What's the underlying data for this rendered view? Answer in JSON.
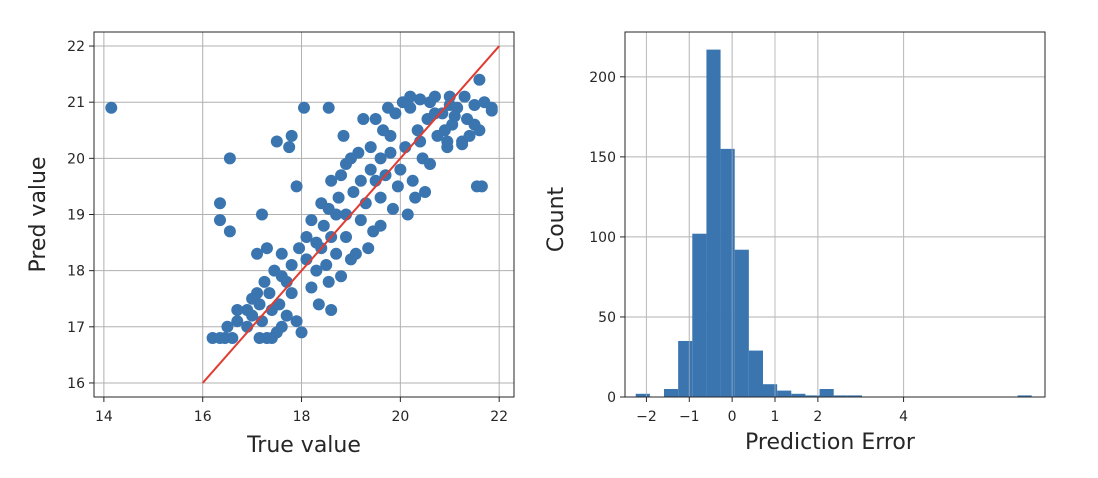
{
  "chart_data": [
    {
      "type": "scatter",
      "title": "",
      "xlabel": "True value",
      "ylabel": "Pred value",
      "xlim": [
        13.8,
        22.3
      ],
      "ylim": [
        15.75,
        22.25
      ],
      "xticks": [
        14,
        16,
        18,
        20,
        22
      ],
      "xtick_labels": [
        "14",
        "16",
        "18",
        "20",
        "22"
      ],
      "yticks": [
        16,
        17,
        18,
        19,
        20,
        21,
        22
      ],
      "ytick_labels": [
        "16",
        "17",
        "18",
        "19",
        "20",
        "21",
        "22"
      ],
      "grid": true,
      "point_color": "#3a75b0",
      "reference_line": {
        "x": [
          16,
          22
        ],
        "y": [
          16,
          22
        ],
        "color": "#e03c31"
      },
      "series": [
        {
          "points": [
            [
              14.15,
              20.9
            ],
            [
              16.2,
              16.8
            ],
            [
              16.35,
              16.8
            ],
            [
              16.45,
              16.8
            ],
            [
              16.6,
              16.8
            ],
            [
              17.15,
              16.8
            ],
            [
              17.3,
              16.8
            ],
            [
              16.5,
              17.0
            ],
            [
              16.7,
              17.1
            ],
            [
              16.9,
              17.0
            ],
            [
              17.0,
              17.2
            ],
            [
              17.2,
              17.1
            ],
            [
              17.4,
              17.3
            ],
            [
              17.5,
              16.9
            ],
            [
              16.7,
              17.3
            ],
            [
              17.0,
              17.5
            ],
            [
              17.1,
              17.6
            ],
            [
              17.25,
              17.8
            ],
            [
              17.35,
              17.6
            ],
            [
              17.55,
              17.4
            ],
            [
              17.7,
              17.2
            ],
            [
              17.8,
              17.6
            ],
            [
              17.9,
              17.1
            ],
            [
              17.6,
              17.9
            ],
            [
              17.45,
              18.0
            ],
            [
              17.1,
              18.3
            ],
            [
              17.3,
              18.4
            ],
            [
              17.6,
              18.3
            ],
            [
              17.8,
              18.1
            ],
            [
              17.95,
              18.4
            ],
            [
              18.1,
              18.2
            ],
            [
              18.2,
              17.7
            ],
            [
              18.35,
              17.4
            ],
            [
              18.55,
              17.8
            ],
            [
              18.6,
              17.3
            ],
            [
              18.1,
              18.6
            ],
            [
              18.3,
              18.5
            ],
            [
              18.45,
              18.8
            ],
            [
              18.5,
              18.1
            ],
            [
              18.7,
              18.3
            ],
            [
              18.8,
              17.9
            ],
            [
              18.9,
              18.6
            ],
            [
              19.0,
              18.2
            ],
            [
              18.2,
              18.9
            ],
            [
              18.55,
              19.1
            ],
            [
              18.75,
              19.3
            ],
            [
              18.9,
              19.0
            ],
            [
              19.05,
              19.4
            ],
            [
              19.2,
              18.9
            ],
            [
              19.3,
              19.2
            ],
            [
              19.45,
              18.7
            ],
            [
              19.5,
              19.6
            ],
            [
              19.6,
              19.3
            ],
            [
              19.7,
              19.7
            ],
            [
              19.85,
              19.1
            ],
            [
              19.95,
              19.5
            ],
            [
              18.6,
              19.6
            ],
            [
              18.9,
              19.9
            ],
            [
              19.15,
              20.1
            ],
            [
              19.4,
              20.2
            ],
            [
              19.6,
              20.0
            ],
            [
              19.8,
              20.4
            ],
            [
              20.0,
              19.8
            ],
            [
              20.1,
              20.2
            ],
            [
              20.25,
              19.6
            ],
            [
              20.35,
              20.5
            ],
            [
              20.45,
              20.0
            ],
            [
              20.55,
              20.7
            ],
            [
              20.6,
              19.9
            ],
            [
              20.75,
              20.4
            ],
            [
              20.85,
              20.8
            ],
            [
              20.95,
              20.2
            ],
            [
              21.05,
              20.6
            ],
            [
              21.15,
              20.9
            ],
            [
              21.25,
              20.3
            ],
            [
              21.35,
              20.7
            ],
            [
              21.5,
              20.95
            ],
            [
              21.6,
              20.5
            ],
            [
              21.7,
              21.0
            ],
            [
              21.85,
              20.9
            ],
            [
              20.2,
              20.9
            ],
            [
              20.4,
              21.05
            ],
            [
              20.7,
              21.1
            ],
            [
              21.0,
              21.1
            ],
            [
              21.3,
              21.1
            ],
            [
              19.9,
              20.8
            ],
            [
              19.75,
              20.9
            ],
            [
              19.5,
              20.7
            ],
            [
              20.05,
              21.0
            ],
            [
              20.3,
              19.3
            ],
            [
              20.5,
              19.4
            ],
            [
              20.15,
              19.0
            ],
            [
              19.35,
              18.4
            ],
            [
              19.6,
              18.8
            ],
            [
              19.1,
              18.3
            ],
            [
              18.8,
              19.7
            ],
            [
              18.4,
              19.2
            ],
            [
              19.2,
              19.6
            ],
            [
              19.65,
              20.5
            ],
            [
              19.25,
              20.7
            ],
            [
              18.55,
              20.9
            ],
            [
              18.85,
              20.4
            ],
            [
              17.8,
              20.4
            ],
            [
              17.5,
              20.3
            ],
            [
              17.75,
              20.2
            ],
            [
              17.9,
              19.5
            ],
            [
              17.2,
              19.0
            ],
            [
              16.35,
              19.2
            ],
            [
              16.35,
              18.9
            ],
            [
              16.55,
              18.7
            ],
            [
              16.55,
              20.0
            ],
            [
              18.05,
              20.9
            ],
            [
              20.2,
              21.1
            ],
            [
              21.85,
              20.85
            ],
            [
              21.6,
              21.4
            ],
            [
              21.55,
              19.5
            ],
            [
              21.65,
              19.5
            ],
            [
              21.25,
              20.25
            ],
            [
              20.95,
              20.3
            ],
            [
              21.5,
              20.6
            ],
            [
              19.0,
              20.0
            ],
            [
              18.6,
              18.6
            ],
            [
              18.3,
              18.0
            ],
            [
              17.6,
              17.0
            ],
            [
              17.4,
              16.8
            ],
            [
              18.0,
              16.9
            ],
            [
              20.7,
              20.8
            ],
            [
              20.9,
              20.5
            ],
            [
              20.4,
              20.3
            ],
            [
              21.1,
              20.75
            ],
            [
              21.4,
              20.4
            ],
            [
              19.8,
              20.1
            ],
            [
              19.4,
              19.8
            ],
            [
              18.7,
              19.0
            ],
            [
              18.4,
              18.4
            ],
            [
              17.7,
              17.8
            ],
            [
              17.15,
              17.4
            ],
            [
              16.9,
              17.3
            ],
            [
              20.6,
              21.0
            ],
            [
              21.0,
              20.95
            ]
          ]
        }
      ]
    },
    {
      "type": "bar",
      "title": "",
      "xlabel": "Prediction Error",
      "ylabel": "Count",
      "xlim": [
        -2.5,
        7.3
      ],
      "ylim": [
        0,
        228
      ],
      "xticks": [
        -2,
        -1,
        0,
        1,
        2,
        4
      ],
      "xtick_labels": [
        "−2",
        "−1",
        "0",
        "1",
        "2",
        "4"
      ],
      "yticks": [
        0,
        50,
        100,
        150,
        200
      ],
      "ytick_labels": [
        "0",
        "50",
        "100",
        "150",
        "200"
      ],
      "grid": true,
      "bar_color": "#3a75b0",
      "bins": [
        {
          "x0": -2.25,
          "x1": -1.92,
          "value": 2
        },
        {
          "x0": -1.92,
          "x1": -1.59,
          "value": 0
        },
        {
          "x0": -1.59,
          "x1": -1.26,
          "value": 5
        },
        {
          "x0": -1.26,
          "x1": -0.93,
          "value": 35
        },
        {
          "x0": -0.93,
          "x1": -0.6,
          "value": 102
        },
        {
          "x0": -0.6,
          "x1": -0.27,
          "value": 217
        },
        {
          "x0": -0.27,
          "x1": 0.06,
          "value": 155
        },
        {
          "x0": 0.06,
          "x1": 0.39,
          "value": 92
        },
        {
          "x0": 0.39,
          "x1": 0.72,
          "value": 29
        },
        {
          "x0": 0.72,
          "x1": 1.05,
          "value": 8
        },
        {
          "x0": 1.05,
          "x1": 1.38,
          "value": 4
        },
        {
          "x0": 1.38,
          "x1": 1.71,
          "value": 2
        },
        {
          "x0": 1.71,
          "x1": 2.04,
          "value": 1
        },
        {
          "x0": 2.04,
          "x1": 2.37,
          "value": 5
        },
        {
          "x0": 2.37,
          "x1": 2.7,
          "value": 1
        },
        {
          "x0": 2.7,
          "x1": 3.03,
          "value": 1
        },
        {
          "x0": 6.66,
          "x1": 6.99,
          "value": 1
        }
      ]
    }
  ]
}
